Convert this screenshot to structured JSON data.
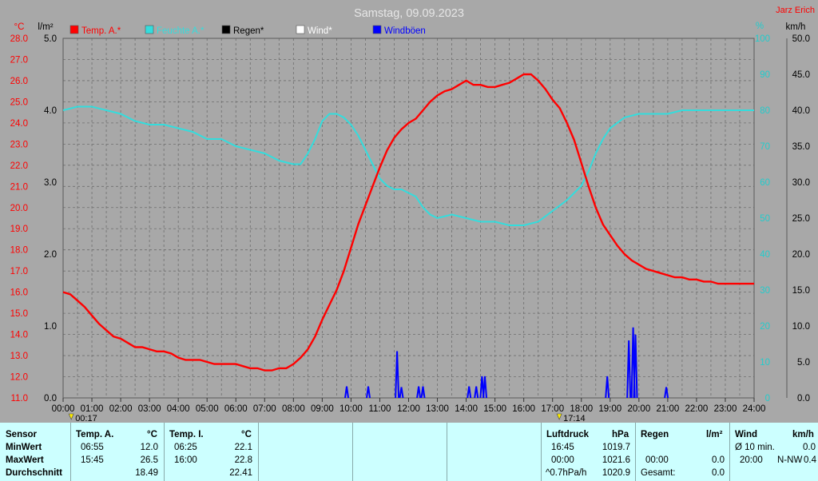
{
  "colors": {
    "background": "#a8a8a8",
    "plot_area": "#a8a8a8",
    "grid": "#6e6e6e",
    "temp": "#ff0000",
    "humidity": "#33dddd",
    "rain": "#000000",
    "wind": "#ffffff",
    "gusts": "#0000ff",
    "panel": "#ccffff"
  },
  "header": {
    "title": "Samstag, 09.09.2023",
    "author": "Jarz Erich"
  },
  "chart_data": {
    "type": "line",
    "title": "Samstag, 09.09.2023",
    "unit_labels": {
      "temp": "°C",
      "rain": "l/m²",
      "humidity": "%",
      "wind": "km/h"
    },
    "legend": [
      {
        "name": "Temp. A.*",
        "color": "#ff0000"
      },
      {
        "name": "Feuchte A.*",
        "color": "#33dddd"
      },
      {
        "name": "Regen*",
        "color": "#000000"
      },
      {
        "name": "Wind*",
        "color": "#ffffff"
      },
      {
        "name": "Windböen",
        "color": "#0000ff"
      }
    ],
    "legend_placement": "top-left",
    "grid": true,
    "x_ticks": [
      "00:00",
      "01:00",
      "02:00",
      "03:00",
      "04:00",
      "05:00",
      "06:00",
      "07:00",
      "08:00",
      "09:00",
      "10:00",
      "11:00",
      "12:00",
      "13:00",
      "14:00",
      "15:00",
      "16:00",
      "17:00",
      "18:00",
      "19:00",
      "20:00",
      "21:00",
      "22:00",
      "23:00",
      "24:00"
    ],
    "x_range_hours": [
      0,
      24
    ],
    "axes": {
      "temp": {
        "range": [
          11.0,
          28.0
        ],
        "ticks": [
          "28.0",
          "27.0",
          "26.0",
          "25.0",
          "24.0",
          "23.0",
          "22.0",
          "21.0",
          "20.0",
          "19.0",
          "18.0",
          "17.0",
          "16.0",
          "15.0",
          "14.0",
          "13.0",
          "12.0",
          "11.0"
        ]
      },
      "rain": {
        "range": [
          0,
          5.0
        ],
        "ticks": [
          "5.0",
          "4.0",
          "3.0",
          "2.0",
          "1.0",
          "0.0"
        ]
      },
      "humidity": {
        "range": [
          0,
          100
        ],
        "ticks": [
          "100",
          "90",
          "80",
          "70",
          "60",
          "50",
          "40",
          "30",
          "20",
          "10",
          "0"
        ]
      },
      "wind": {
        "range": [
          0,
          50.0
        ],
        "ticks": [
          "50.0",
          "45.0",
          "40.0",
          "35.0",
          "30.0",
          "25.0",
          "20.0",
          "15.0",
          "10.0",
          "5.0",
          "0.0"
        ]
      }
    },
    "series": [
      {
        "name": "Temp. A.*",
        "axis": "temp",
        "points": [
          [
            0,
            16.0
          ],
          [
            0.25,
            15.9
          ],
          [
            0.5,
            15.6
          ],
          [
            0.75,
            15.3
          ],
          [
            1,
            14.9
          ],
          [
            1.25,
            14.5
          ],
          [
            1.5,
            14.2
          ],
          [
            1.75,
            13.9
          ],
          [
            2,
            13.8
          ],
          [
            2.25,
            13.6
          ],
          [
            2.5,
            13.4
          ],
          [
            2.75,
            13.4
          ],
          [
            3,
            13.3
          ],
          [
            3.25,
            13.2
          ],
          [
            3.5,
            13.2
          ],
          [
            3.75,
            13.1
          ],
          [
            4,
            12.9
          ],
          [
            4.25,
            12.8
          ],
          [
            4.5,
            12.8
          ],
          [
            4.75,
            12.8
          ],
          [
            5,
            12.7
          ],
          [
            5.25,
            12.6
          ],
          [
            5.5,
            12.6
          ],
          [
            5.75,
            12.6
          ],
          [
            6,
            12.6
          ],
          [
            6.25,
            12.5
          ],
          [
            6.5,
            12.4
          ],
          [
            6.75,
            12.4
          ],
          [
            7,
            12.3
          ],
          [
            7.25,
            12.3
          ],
          [
            7.5,
            12.4
          ],
          [
            7.75,
            12.4
          ],
          [
            8,
            12.6
          ],
          [
            8.25,
            12.9
          ],
          [
            8.5,
            13.3
          ],
          [
            8.75,
            13.9
          ],
          [
            9,
            14.7
          ],
          [
            9.25,
            15.4
          ],
          [
            9.5,
            16.1
          ],
          [
            9.75,
            17.0
          ],
          [
            10,
            18.1
          ],
          [
            10.25,
            19.2
          ],
          [
            10.5,
            20.1
          ],
          [
            10.75,
            21.0
          ],
          [
            11,
            21.9
          ],
          [
            11.25,
            22.7
          ],
          [
            11.5,
            23.3
          ],
          [
            11.75,
            23.7
          ],
          [
            12,
            24.0
          ],
          [
            12.25,
            24.2
          ],
          [
            12.5,
            24.6
          ],
          [
            12.75,
            25.0
          ],
          [
            13,
            25.3
          ],
          [
            13.25,
            25.5
          ],
          [
            13.5,
            25.6
          ],
          [
            13.75,
            25.8
          ],
          [
            14,
            26.0
          ],
          [
            14.25,
            25.8
          ],
          [
            14.5,
            25.8
          ],
          [
            14.75,
            25.7
          ],
          [
            15,
            25.7
          ],
          [
            15.25,
            25.8
          ],
          [
            15.5,
            25.9
          ],
          [
            15.75,
            26.1
          ],
          [
            16,
            26.3
          ],
          [
            16.25,
            26.3
          ],
          [
            16.5,
            26.0
          ],
          [
            16.75,
            25.6
          ],
          [
            17,
            25.1
          ],
          [
            17.25,
            24.7
          ],
          [
            17.5,
            24.0
          ],
          [
            17.75,
            23.2
          ],
          [
            18,
            22.1
          ],
          [
            18.25,
            21.0
          ],
          [
            18.5,
            20.0
          ],
          [
            18.75,
            19.2
          ],
          [
            19,
            18.7
          ],
          [
            19.25,
            18.2
          ],
          [
            19.5,
            17.8
          ],
          [
            19.75,
            17.5
          ],
          [
            20,
            17.3
          ],
          [
            20.25,
            17.1
          ],
          [
            20.5,
            17.0
          ],
          [
            20.75,
            16.9
          ],
          [
            21,
            16.8
          ],
          [
            21.25,
            16.7
          ],
          [
            21.5,
            16.7
          ],
          [
            21.75,
            16.6
          ],
          [
            22,
            16.6
          ],
          [
            22.25,
            16.5
          ],
          [
            22.5,
            16.5
          ],
          [
            22.75,
            16.4
          ],
          [
            23,
            16.4
          ],
          [
            23.25,
            16.4
          ],
          [
            23.5,
            16.4
          ],
          [
            23.75,
            16.4
          ],
          [
            24,
            16.4
          ]
        ]
      },
      {
        "name": "Feuchte A.*",
        "axis": "humidity",
        "points": [
          [
            0,
            80
          ],
          [
            0.5,
            81
          ],
          [
            1,
            81
          ],
          [
            1.5,
            80
          ],
          [
            2,
            79
          ],
          [
            2.5,
            77
          ],
          [
            3,
            76
          ],
          [
            3.5,
            76
          ],
          [
            4,
            75
          ],
          [
            4.5,
            74
          ],
          [
            5,
            72
          ],
          [
            5.5,
            72
          ],
          [
            6,
            70
          ],
          [
            6.5,
            69
          ],
          [
            7,
            68
          ],
          [
            7.5,
            66
          ],
          [
            8,
            65
          ],
          [
            8.25,
            65
          ],
          [
            8.5,
            68
          ],
          [
            8.75,
            72
          ],
          [
            9,
            77
          ],
          [
            9.25,
            79
          ],
          [
            9.5,
            79
          ],
          [
            9.75,
            78
          ],
          [
            10,
            76
          ],
          [
            10.25,
            73
          ],
          [
            10.5,
            69
          ],
          [
            10.75,
            65
          ],
          [
            11,
            61
          ],
          [
            11.25,
            59
          ],
          [
            11.5,
            58
          ],
          [
            11.75,
            58
          ],
          [
            12,
            57
          ],
          [
            12.25,
            56
          ],
          [
            12.5,
            53
          ],
          [
            12.75,
            51
          ],
          [
            13,
            50
          ],
          [
            13.5,
            51
          ],
          [
            14,
            50
          ],
          [
            14.5,
            49
          ],
          [
            15,
            49
          ],
          [
            15.5,
            48
          ],
          [
            16,
            48
          ],
          [
            16.5,
            49
          ],
          [
            17,
            52
          ],
          [
            17.5,
            55
          ],
          [
            18,
            59
          ],
          [
            18.25,
            63
          ],
          [
            18.5,
            68
          ],
          [
            18.75,
            72
          ],
          [
            19,
            75
          ],
          [
            19.5,
            78
          ],
          [
            20,
            79
          ],
          [
            20.5,
            79
          ],
          [
            21,
            79
          ],
          [
            21.5,
            80
          ],
          [
            22,
            80
          ],
          [
            22.5,
            80
          ],
          [
            23,
            80
          ],
          [
            23.5,
            80
          ],
          [
            24,
            80
          ]
        ]
      },
      {
        "name": "Windböen",
        "axis": "wind",
        "spikes": [
          [
            9.85,
            1.6
          ],
          [
            10.6,
            1.6
          ],
          [
            11.6,
            6.5
          ],
          [
            11.75,
            1.5
          ],
          [
            12.35,
            1.6
          ],
          [
            12.5,
            1.6
          ],
          [
            14.1,
            1.6
          ],
          [
            14.35,
            1.6
          ],
          [
            14.55,
            3.0
          ],
          [
            14.65,
            3.0
          ],
          [
            18.9,
            3.0
          ],
          [
            19.65,
            8.0
          ],
          [
            19.8,
            9.8
          ],
          [
            19.88,
            8.8
          ],
          [
            20.95,
            1.5
          ]
        ]
      }
    ],
    "markers": [
      {
        "label": "00:17",
        "x": 0.283
      },
      {
        "label": "17:14",
        "x": 17.233
      }
    ]
  },
  "stats": {
    "sensor": {
      "header": "Sensor",
      "rows": [
        "MinWert",
        "MaxWert",
        "Durchschnitt"
      ]
    },
    "temp_a": {
      "header": "Temp. A.",
      "unit": "°C",
      "min_time": "06:55",
      "min_val": "12.0",
      "max_time": "15:45",
      "max_val": "26.5",
      "avg_val": "18.49"
    },
    "temp_i": {
      "header": "Temp. I.",
      "unit": "°C",
      "min_time": "06:25",
      "min_val": "22.1",
      "max_time": "16:00",
      "max_val": "22.8",
      "avg_val": "22.41"
    },
    "pressure": {
      "header": "Luftdruck",
      "unit": "hPa",
      "min_time": "16:45",
      "min_val": "1019.7",
      "max_time": "00:00",
      "max_val": "1021.6",
      "trend": "^0.7hPa/h",
      "avg_val": "1020.9"
    },
    "rain": {
      "header": "Regen",
      "unit": "l/m²",
      "max_time": "00:00",
      "max_val": "0.0",
      "total_label": "Gesamt:",
      "total_val": "0.0"
    },
    "wind": {
      "header": "Wind",
      "unit": "km/h",
      "avg_label": "Ø 10 min.",
      "avg_val": "0.0",
      "max_time": "20:00",
      "max_dir": "N-NW",
      "max_val": "0.4"
    }
  }
}
